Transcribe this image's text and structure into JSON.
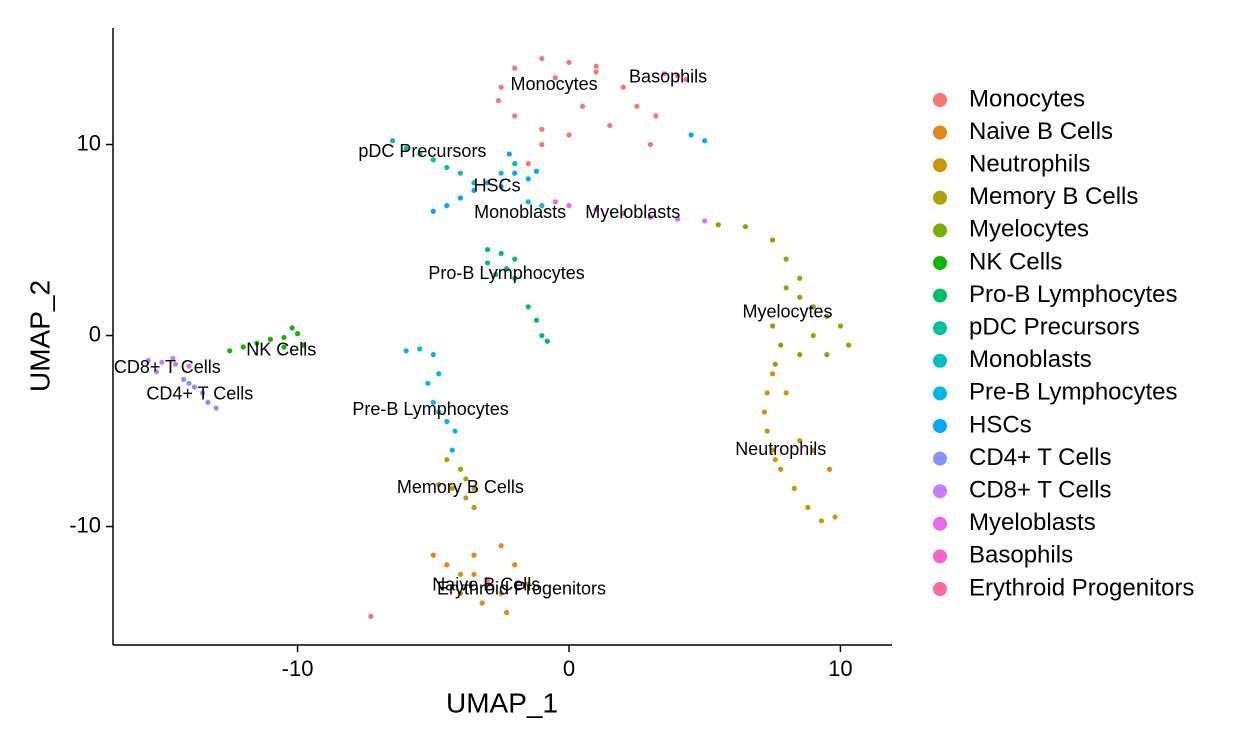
{
  "chart_data": {
    "type": "scatter",
    "x_label": "UMAP_1",
    "y_label": "UMAP_2",
    "xlim": [
      -16.8,
      11.9
    ],
    "ylim": [
      -16.2,
      16.1
    ],
    "xticks": [
      -10,
      0,
      10
    ],
    "yticks": [
      -10,
      0,
      10
    ],
    "grid": false,
    "legend": "right",
    "series": [
      {
        "name": "Monocytes",
        "color": "#F8766D",
        "x": [
          -2.5,
          -2,
          -1,
          0,
          1,
          2,
          2.5,
          1.5,
          0,
          -1,
          -2,
          -2.6,
          -1.5,
          -1,
          0.5,
          1,
          -0.5,
          3.2,
          3
        ],
        "values": [
          13,
          14,
          14.5,
          14.3,
          13.8,
          13,
          12,
          11,
          10.5,
          10.8,
          11.5,
          12.3,
          9,
          10,
          12,
          14.1,
          13.5,
          11.5,
          10
        ]
      },
      {
        "name": "Naive B Cells",
        "color": "#E68613",
        "x": [
          -5,
          -4.5,
          -4,
          -3.5,
          -3,
          -2.5,
          -2.3,
          -3.2,
          -4,
          -2.5,
          -2,
          -1.5,
          -3.5
        ],
        "values": [
          -11.5,
          -12,
          -12.5,
          -12.5,
          -13,
          -13.5,
          -14.5,
          -14,
          -13.5,
          -11,
          -12,
          -13,
          -11.5
        ]
      },
      {
        "name": "Neutrophils",
        "color": "#CD9600",
        "x": [
          7.5,
          7.3,
          7.2,
          7.3,
          7.5,
          7.8,
          8.3,
          8.8,
          9.3,
          9.8,
          8.5,
          9,
          9.6,
          8,
          7.6
        ],
        "values": [
          -2,
          -3,
          -4,
          -5,
          -6,
          -7,
          -8,
          -9,
          -9.7,
          -9.5,
          -5.5,
          -6,
          -7,
          -3,
          -6.5
        ]
      },
      {
        "name": "Memory B Cells",
        "color": "#AEA200",
        "x": [
          -4.5,
          -4,
          -3.8,
          -3.5,
          -3.8,
          -3.5,
          -4.3,
          -4.8
        ],
        "values": [
          -6.5,
          -7,
          -7.5,
          -8,
          -8.5,
          -9,
          -8,
          -7.8
        ]
      },
      {
        "name": "Myelocytes",
        "color": "#7CAE00",
        "x": [
          5.5,
          6.5,
          7.5,
          8,
          8.5,
          8.5,
          9,
          9.5,
          10,
          10.3,
          9.5,
          8.5,
          7.8,
          7.5,
          8,
          9,
          7.6
        ],
        "values": [
          5.8,
          5.7,
          5,
          4,
          3,
          2,
          1.5,
          1,
          0.5,
          -0.5,
          -1,
          -1,
          -0.5,
          0.5,
          2.5,
          0,
          -1.5
        ]
      },
      {
        "name": "NK Cells",
        "color": "#0CB702",
        "x": [
          -12.5,
          -12,
          -11.5,
          -11,
          -10.5,
          -10,
          -10.2,
          -9.8,
          -10.5
        ],
        "values": [
          -0.8,
          -0.6,
          -0.4,
          -0.2,
          -0.1,
          0.1,
          0.4,
          -0.5,
          -0.6
        ]
      },
      {
        "name": "Pro-B Lymphocytes",
        "color": "#00BE67",
        "x": [
          -3,
          -2.5,
          -2,
          -2.3,
          -3,
          -2.7,
          -2,
          -1.5,
          -1.2,
          -1,
          -0.8
        ],
        "values": [
          4.5,
          4.3,
          4,
          3.5,
          3.8,
          3.2,
          3,
          1.5,
          0.8,
          0,
          -0.3
        ]
      },
      {
        "name": "pDC Precursors",
        "color": "#00C19A",
        "x": [
          -6.5,
          -6,
          -5.5,
          -5,
          -4.5,
          -4,
          -3.5
        ],
        "values": [
          10.2,
          9.8,
          9.5,
          9.2,
          8.8,
          8.5,
          8
        ]
      },
      {
        "name": "Monoblasts",
        "color": "#00BFC4",
        "x": [
          -2.5,
          -2,
          -1.5,
          -1
        ],
        "values": [
          8.5,
          9,
          7,
          6.8
        ]
      },
      {
        "name": "Pre-B Lymphocytes",
        "color": "#00B8E7",
        "x": [
          -6,
          -5.5,
          -5,
          -5.2,
          -5,
          -4.8,
          -4.5,
          -4.2,
          -4.8,
          -4.3
        ],
        "values": [
          -0.8,
          -0.7,
          -1,
          -2.5,
          -3.5,
          -4,
          -4.5,
          -5,
          -2,
          -6
        ]
      },
      {
        "name": "HSCs",
        "color": "#00A9FF",
        "x": [
          -5,
          -4.5,
          -4,
          -3.5,
          -3,
          -2.5,
          -2,
          -1.5,
          -1.2,
          -2.2,
          4.5,
          5
        ],
        "values": [
          6.5,
          6.8,
          7.2,
          7.6,
          8,
          7.8,
          8.5,
          8.2,
          8.6,
          9.5,
          10.5,
          10.2
        ]
      },
      {
        "name": "CD4+ T Cells",
        "color": "#8494FF",
        "x": [
          -14.2,
          -13.8,
          -13.5,
          -13.3,
          -13,
          -14
        ],
        "values": [
          -2.3,
          -2.7,
          -3,
          -3.5,
          -3.8,
          -2.5
        ]
      },
      {
        "name": "CD8+ T Cells",
        "color": "#C77CFF",
        "x": [
          -15.5,
          -15,
          -14.5,
          -14,
          -15.2,
          -14.6
        ],
        "values": [
          -1.3,
          -1.4,
          -1.5,
          -1.6,
          -1.9,
          -1.2
        ]
      },
      {
        "name": "Myeloblasts",
        "color": "#ED68ED",
        "x": [
          -0.5,
          0,
          1,
          2,
          3,
          4,
          5
        ],
        "values": [
          7,
          6.8,
          6.6,
          6.4,
          6.2,
          6.1,
          6
        ]
      },
      {
        "name": "Basophils",
        "color": "#FF61CC",
        "x": [
          3.5,
          4,
          4.3
        ],
        "values": [
          13.7,
          13.6,
          13.4
        ]
      },
      {
        "name": "Erythroid Progenitors",
        "color": "#FF689E",
        "x": [
          -7.3,
          -3
        ],
        "values": [
          -14.7,
          -12.8
        ]
      }
    ],
    "annotations": [
      {
        "text": "Monocytes",
        "x": -0.55,
        "y": 13.1
      },
      {
        "text": "Basophils",
        "x": 3.65,
        "y": 13.5
      },
      {
        "text": "pDC Precursors",
        "x": -5.4,
        "y": 9.6
      },
      {
        "text": "HSCs",
        "x": -2.65,
        "y": 7.8
      },
      {
        "text": "Monoblasts",
        "x": -1.8,
        "y": 6.4
      },
      {
        "text": "Myeloblasts",
        "x": 2.35,
        "y": 6.4
      },
      {
        "text": "Pro-B Lymphocytes",
        "x": -2.3,
        "y": 3.2
      },
      {
        "text": "Myelocytes",
        "x": 8.05,
        "y": 1.2
      },
      {
        "text": "NK Cells",
        "x": -10.6,
        "y": -0.8
      },
      {
        "text": "CD8+ T Cells",
        "x": -14.8,
        "y": -1.7
      },
      {
        "text": "CD4+ T Cells",
        "x": -13.6,
        "y": -3.1
      },
      {
        "text": "Pre-B Lymphocytes",
        "x": -5.1,
        "y": -3.9
      },
      {
        "text": "Neutrophils",
        "x": 7.8,
        "y": -6.0
      },
      {
        "text": "Memory B Cells",
        "x": -4.0,
        "y": -8.0
      },
      {
        "text": "Naive B Cells",
        "x": -3.05,
        "y": -13.1
      },
      {
        "text": "Erythroid Progenitors",
        "x": -1.75,
        "y": -13.3
      }
    ]
  }
}
